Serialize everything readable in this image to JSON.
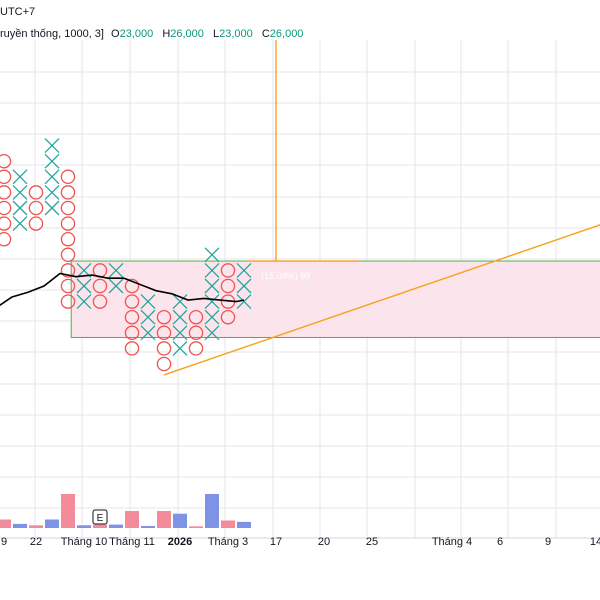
{
  "header": {
    "timezone": "UTC+7",
    "legend_prefix": "ruyền thống, 1000, 3]",
    "ohlc": [
      {
        "k": "O",
        "v": "23,000"
      },
      {
        "k": "H",
        "v": "26,000"
      },
      {
        "k": "L",
        "v": "23,000"
      },
      {
        "k": "C",
        "v": "26,000"
      }
    ]
  },
  "chart_data": {
    "type": "point-and-figure",
    "box_size": 1000,
    "reversal": 3,
    "x_ticks": [
      {
        "label": "9",
        "col": 0
      },
      {
        "label": "22",
        "col": 2
      },
      {
        "label": "Tháng 10",
        "col": 5
      },
      {
        "label": "Tháng 11",
        "col": 8
      },
      {
        "label": "2026",
        "col": 11,
        "bold": true
      },
      {
        "label": "Tháng 3",
        "col": 14
      },
      {
        "label": "17",
        "col": 17
      },
      {
        "label": "20",
        "col": 20
      },
      {
        "label": "25",
        "col": 23
      },
      {
        "label": "Tháng 4",
        "col": 28
      },
      {
        "label": "6",
        "col": 31
      },
      {
        "label": "9",
        "col": 34
      },
      {
        "label": "14",
        "col": 37
      }
    ],
    "columns": [
      {
        "col": 0,
        "type": "O",
        "from": 8,
        "to": 13
      },
      {
        "col": 1,
        "type": "X",
        "from": 9,
        "to": 12
      },
      {
        "col": 2,
        "type": "O",
        "from": 9,
        "to": 11
      },
      {
        "col": 3,
        "type": "X",
        "from": 10,
        "to": 14
      },
      {
        "col": 4,
        "type": "O",
        "from": 4,
        "to": 12
      },
      {
        "col": 5,
        "type": "X",
        "from": 4,
        "to": 6
      },
      {
        "col": 6,
        "type": "O",
        "from": 4,
        "to": 6
      },
      {
        "col": 7,
        "type": "X",
        "from": 5,
        "to": 6
      },
      {
        "col": 8,
        "type": "O",
        "from": 1,
        "to": 5
      },
      {
        "col": 9,
        "type": "X",
        "from": 2,
        "to": 4
      },
      {
        "col": 10,
        "type": "O",
        "from": 0,
        "to": 3
      },
      {
        "col": 11,
        "type": "X",
        "from": 1,
        "to": 4
      },
      {
        "col": 12,
        "type": "O",
        "from": 1,
        "to": 3
      },
      {
        "col": 13,
        "type": "X",
        "from": 2,
        "to": 7
      },
      {
        "col": 14,
        "type": "O",
        "from": 3,
        "to": 6
      },
      {
        "col": 15,
        "type": "X",
        "from": 4,
        "to": 6
      }
    ],
    "moving_average": [
      {
        "col": -0.5,
        "v": 3.6
      },
      {
        "col": 0.5,
        "v": 4.3
      },
      {
        "col": 1.5,
        "v": 4.6
      },
      {
        "col": 2.5,
        "v": 5.0
      },
      {
        "col": 3.5,
        "v": 5.8
      },
      {
        "col": 4.5,
        "v": 5.6
      },
      {
        "col": 5.5,
        "v": 5.7
      },
      {
        "col": 6.5,
        "v": 5.5
      },
      {
        "col": 7.5,
        "v": 5.5
      },
      {
        "col": 8.5,
        "v": 5.1
      },
      {
        "col": 9.5,
        "v": 4.7
      },
      {
        "col": 10.5,
        "v": 4.5
      },
      {
        "col": 11.5,
        "v": 4.1
      },
      {
        "col": 12.5,
        "v": 4.2
      },
      {
        "col": 13.5,
        "v": 4.1
      },
      {
        "col": 14.5,
        "v": 4.0
      },
      {
        "col": 15.0,
        "v": 4.1
      }
    ],
    "range_box": {
      "col_from": 4.2,
      "col_to": 38.8,
      "v_from": 1.7,
      "v_to": 6.6
    },
    "range_label": "(15.04%) 99",
    "trend_line": {
      "col_from": 10.0,
      "v_from": -0.7,
      "col_to": 38.9,
      "v_to": 9.5
    },
    "vertical_line": {
      "col": 17.0
    },
    "horizontal_line": {
      "col_from": 15.2,
      "col_to": 22.2,
      "v": 6.6
    },
    "volume": [
      {
        "col": 0,
        "v": 0.25,
        "dir": "down"
      },
      {
        "col": 1,
        "v": 0.12,
        "dir": "up"
      },
      {
        "col": 2,
        "v": 0.08,
        "dir": "down"
      },
      {
        "col": 3,
        "v": 0.25,
        "dir": "up"
      },
      {
        "col": 4,
        "v": 1.0,
        "dir": "down"
      },
      {
        "col": 5,
        "v": 0.08,
        "dir": "up"
      },
      {
        "col": 6,
        "v": 0.1,
        "dir": "down"
      },
      {
        "col": 7,
        "v": 0.1,
        "dir": "up"
      },
      {
        "col": 8,
        "v": 0.5,
        "dir": "down"
      },
      {
        "col": 9,
        "v": 0.06,
        "dir": "up"
      },
      {
        "col": 10,
        "v": 0.5,
        "dir": "down"
      },
      {
        "col": 11,
        "v": 0.42,
        "dir": "up"
      },
      {
        "col": 12,
        "v": 0.05,
        "dir": "down"
      },
      {
        "col": 13,
        "v": 1.0,
        "dir": "up"
      },
      {
        "col": 14,
        "v": 0.22,
        "dir": "down"
      },
      {
        "col": 15,
        "v": 0.18,
        "dir": "up"
      }
    ],
    "event_marker": {
      "col": 6,
      "label": "E"
    },
    "colors": {
      "x_mark": "#26a69a",
      "o_mark": "#ef5350",
      "range_fill": "#fce4ec",
      "range_border": "#4caf50",
      "trend": "#f7a21b",
      "ma": "#000000",
      "vol_up": "#7f93e6",
      "vol_down": "#f48b9b",
      "range_label": "#ffffff"
    }
  }
}
